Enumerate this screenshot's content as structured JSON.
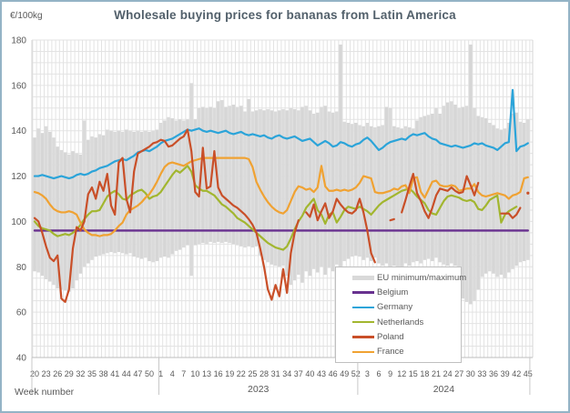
{
  "header": {
    "title": "Wholesale buying prices for bananas from Latin America"
  },
  "axes": {
    "y_unit_label": "€/100kg",
    "x_axis_title": "Week number"
  },
  "chart_data": {
    "type": "line",
    "title": "Wholesale buying prices for bananas from Latin America",
    "ylabel": "€/100kg",
    "xlabel": "Week number",
    "ylim": [
      40,
      180
    ],
    "y_ticks": [
      40,
      60,
      80,
      100,
      120,
      140,
      160,
      180
    ],
    "y_grid_step": 5,
    "grid": true,
    "x_structure": [
      {
        "year": 2022,
        "first_week": 20,
        "last_week": 52,
        "year_label": "",
        "axis_tick_labels": [
          20,
          23,
          26,
          29,
          32,
          35,
          38,
          41,
          44,
          47,
          50
        ]
      },
      {
        "year": 2023,
        "first_week": 1,
        "last_week": 52,
        "year_label": "2023",
        "axis_tick_labels": [
          1,
          4,
          7,
          10,
          13,
          16,
          19,
          22,
          25,
          28,
          31,
          34,
          37,
          40,
          43,
          46,
          49,
          52
        ]
      },
      {
        "year": 2024,
        "first_week": 1,
        "last_week": 45,
        "year_label": "2024",
        "axis_tick_labels": [
          3,
          6,
          9,
          12,
          15,
          18,
          21,
          24,
          27,
          30,
          33,
          36,
          39,
          42,
          45
        ]
      }
    ],
    "band": {
      "name": "EU minimum/maximum",
      "color": "#d9d9d9",
      "max": {
        "y2022": [
          137,
          141,
          139,
          142,
          139.5,
          137,
          133,
          131.5,
          130.5,
          129.5,
          131,
          130,
          129.5,
          144.5,
          136,
          137.5,
          137,
          138.5,
          138,
          140.5,
          140,
          139.5,
          140,
          139.5,
          140.5,
          140,
          139.5,
          140,
          139.5,
          140,
          139.5,
          140,
          140.5
        ],
        "y2023": [
          143.5,
          144.5,
          146,
          145.5,
          144.5,
          145,
          144.5,
          145,
          161,
          145,
          150,
          150.5,
          150,
          150.5,
          150,
          153,
          153.5,
          150.5,
          151,
          151.5,
          150.5,
          151,
          148.5,
          154,
          148.5,
          149,
          149.5,
          149,
          149.5,
          149,
          148.5,
          149,
          149.5,
          149,
          150,
          149.5,
          149,
          150.5,
          151,
          149,
          147.5,
          148,
          150.5,
          151,
          148.5,
          148,
          148.5,
          178,
          144,
          143.5,
          143,
          143.5
        ],
        "y2024": [
          142.5,
          142,
          143.5,
          142,
          141.5,
          142,
          142.5,
          150.5,
          150,
          142,
          141.5,
          141,
          142,
          141.5,
          141,
          144.5,
          146,
          146.5,
          147,
          147.5,
          150,
          147.5,
          151,
          152.5,
          153,
          151.5,
          150,
          150.5,
          151,
          178,
          150,
          146.5,
          146,
          145.5,
          143.5,
          142.5,
          141,
          140.5,
          141,
          143.5,
          147.5,
          148,
          144,
          143.5,
          145
        ]
      },
      "min": {
        "y2022": [
          78,
          77.5,
          76,
          74.5,
          73.5,
          72,
          70.5,
          70,
          69.5,
          69,
          70.5,
          74,
          77,
          80,
          81.5,
          83,
          84.5,
          85,
          85.5,
          86,
          86.5,
          86,
          86.5,
          86,
          85.5,
          86,
          84.5,
          84,
          83.5,
          84,
          82.5,
          82,
          82.5
        ],
        "y2023": [
          84,
          84.5,
          84,
          85.5,
          87,
          87.5,
          88.5,
          89.5,
          76,
          89.5,
          90,
          90.5,
          90,
          91,
          90.5,
          91,
          90.5,
          91,
          90.5,
          90,
          89.5,
          89,
          88.5,
          89,
          88.5,
          89,
          85,
          83,
          82,
          81,
          80.5,
          80,
          80.5,
          76,
          72,
          74,
          76.5,
          73,
          78,
          76,
          79,
          77.5,
          80,
          76.5,
          79.5,
          78,
          81,
          79,
          82.5,
          83.5,
          84.5,
          85
        ],
        "y2024": [
          84.5,
          83,
          84,
          82.5,
          84,
          81.5,
          80.5,
          81.5,
          79.5,
          80.5,
          79,
          80,
          81.5,
          80.5,
          82,
          82.5,
          81.5,
          83,
          83.5,
          82.5,
          84,
          82,
          81,
          80.5,
          81.5,
          80.5,
          79,
          66,
          64.5,
          63.5,
          65,
          70,
          75.5,
          77,
          78,
          77,
          75.5,
          76.5,
          75,
          77.5,
          79,
          80.5,
          82,
          82.5,
          83
        ]
      }
    },
    "series": [
      {
        "name": "Belgium",
        "color": "#68318f",
        "constant": 96
      },
      {
        "name": "Germany",
        "color": "#2ba4d9",
        "y2022": [
          120,
          120,
          120.5,
          120,
          119.5,
          119,
          119.5,
          120,
          119.5,
          119,
          119.5,
          120.5,
          121,
          120.5,
          121,
          122,
          122.5,
          123.5,
          124,
          124.5,
          125.5,
          126.5,
          127,
          127.5,
          127,
          128,
          129,
          130.5,
          131,
          131.5,
          131,
          132,
          133
        ],
        "y2023": [
          134.5,
          135.5,
          136,
          136.5,
          137.5,
          138.5,
          139.5,
          140.5,
          140,
          140.5,
          141,
          140,
          139.5,
          140,
          139.5,
          139,
          139.5,
          140,
          139,
          138.5,
          139,
          139.5,
          138.5,
          138,
          138.5,
          138,
          137.5,
          138,
          137,
          136.5,
          137.5,
          138,
          137,
          136.5,
          137,
          137.5,
          136.5,
          135.5,
          136,
          136.5,
          135,
          133.5,
          134.5,
          135.5,
          134.5,
          133,
          133.5,
          135,
          134.5,
          133.5,
          133,
          134
        ],
        "y2024": [
          134.5,
          136,
          137,
          135.5,
          133.5,
          131.5,
          132.5,
          134,
          135,
          135.5,
          136,
          136.5,
          136,
          137.5,
          138.5,
          138,
          138.5,
          139,
          137.5,
          136.5,
          136,
          134.5,
          134,
          133.5,
          133,
          133.5,
          133,
          132.5,
          133,
          133.5,
          134.5,
          134,
          134.5,
          133.5,
          133,
          132.5,
          131.5,
          133,
          134.5,
          135,
          158,
          131,
          133,
          133.5,
          134.5
        ]
      },
      {
        "name": "Netherlands",
        "color": "#a2b62f",
        "y2022": [
          100,
          98,
          97,
          96.5,
          96,
          94.5,
          93.5,
          94,
          94.5,
          94,
          95,
          96.5,
          98.5,
          101,
          103,
          104.5,
          104.5,
          105,
          108,
          111,
          112.5,
          113.5,
          112,
          110,
          109.5,
          111.5,
          112.5,
          113.5,
          114,
          112.5,
          110,
          111,
          111.5
        ],
        "y2023": [
          113,
          115.5,
          118,
          120.5,
          122.5,
          121.5,
          123,
          124.5,
          122,
          116,
          114.5,
          113.5,
          113.5,
          112.5,
          111.5,
          109.5,
          107.5,
          106.5,
          105,
          103.5,
          101.5,
          100.5,
          99.5,
          98,
          96.5,
          95,
          93.5,
          92,
          90.5,
          89.5,
          88.5,
          88,
          87.5,
          89,
          92.5,
          96.5,
          100,
          102.5,
          106,
          108,
          110,
          105,
          103,
          99,
          103,
          104,
          99.5,
          102,
          105,
          106.5,
          106,
          105.5
        ],
        "y2024": [
          106.5,
          105.5,
          104.5,
          103,
          105,
          107,
          108.5,
          109.5,
          110.5,
          111.5,
          112.5,
          113.5,
          114,
          114.5,
          113,
          111,
          109.5,
          108,
          105,
          103.5,
          103,
          106,
          109,
          111,
          111.5,
          111,
          110.5,
          109.5,
          109,
          109.5,
          108.5,
          105.5,
          105,
          107,
          109.5,
          110.5,
          111.5,
          99.5,
          103,
          104.5,
          105.5,
          106.5,
          null,
          null,
          null
        ]
      },
      {
        "name": "Poland",
        "color": "#c94f28",
        "y2022": [
          101.5,
          100,
          95,
          89,
          84,
          82.5,
          85,
          66,
          64.5,
          70,
          88,
          97.5,
          96,
          100,
          112,
          115,
          110,
          117.5,
          113.5,
          121,
          107,
          103,
          126,
          128,
          110,
          104,
          122,
          130,
          131,
          132,
          133,
          134.5,
          135
        ],
        "y2023": [
          136,
          135.5,
          133,
          133.5,
          135,
          136.5,
          137.5,
          140.5,
          131,
          113,
          111,
          132.5,
          114.5,
          115.5,
          131,
          115,
          111.5,
          110,
          108.5,
          107,
          106,
          104.5,
          103,
          101,
          98.5,
          95,
          88,
          80,
          70,
          65.5,
          72,
          67,
          79,
          68.5,
          86,
          95,
          100.5,
          null,
          104,
          102,
          107.5,
          100.5,
          104.5,
          108,
          101.5,
          104.5,
          110,
          107.5,
          105.5,
          104,
          103.5,
          105
        ],
        "y2024": [
          110,
          104,
          96,
          86,
          82,
          null,
          null,
          null,
          100.5,
          101,
          null,
          104,
          109.5,
          115.5,
          121,
          112.5,
          109,
          104.5,
          101.5,
          106,
          111.5,
          114.5,
          114,
          113.5,
          115,
          113.5,
          112.5,
          113,
          120,
          116,
          111.5,
          117,
          null,
          null,
          null,
          null,
          null,
          103.5,
          103.5,
          103.5,
          101.5,
          103,
          106,
          null,
          112.5
        ]
      },
      {
        "name": "France",
        "color": "#f0a232",
        "y2022": [
          113,
          112.5,
          111.5,
          110,
          107.5,
          105.5,
          104.5,
          104,
          104,
          104.5,
          104,
          103,
          99.5,
          96.5,
          95,
          94,
          94,
          93.5,
          94,
          94,
          94.5,
          96,
          98,
          99.5,
          103,
          105,
          106,
          107,
          108.5,
          110.5,
          112,
          114.5,
          117.5
        ],
        "y2023": [
          121,
          124,
          125.5,
          126,
          125.5,
          125,
          124.5,
          125.5,
          126.5,
          127,
          127.5,
          128,
          128,
          128,
          128,
          128,
          128,
          128,
          128,
          128,
          128,
          128,
          128,
          127.5,
          124,
          117.5,
          114,
          111,
          108.5,
          106.5,
          105,
          104,
          103.5,
          105,
          109,
          113,
          115.5,
          115,
          114,
          114.5,
          113,
          115,
          124.5,
          115.5,
          113.5,
          113.5,
          114,
          113.5,
          114,
          113.5,
          114,
          115
        ],
        "y2024": [
          117,
          120,
          119.5,
          119,
          113,
          112.5,
          112.5,
          113,
          113.5,
          114.5,
          114,
          115.5,
          116,
          112.5,
          119,
          119.5,
          113,
          110.5,
          114,
          117.5,
          118,
          116,
          115.5,
          115.5,
          116,
          115.5,
          113.5,
          114,
          114.5,
          114.5,
          116.5,
          113,
          111.5,
          111,
          111.5,
          112,
          112.5,
          112,
          111.5,
          110,
          111.5,
          112,
          113,
          119,
          119.5
        ]
      }
    ],
    "legend": {
      "position": "inside-bottom-center",
      "entries": [
        {
          "label": "EU minimum/maximum",
          "color": "#d9d9d9",
          "swatch": "band"
        },
        {
          "label": "Belgium",
          "color": "#68318f",
          "swatch": "line"
        },
        {
          "label": "Germany",
          "color": "#2ba4d9",
          "swatch": "line"
        },
        {
          "label": "Netherlands",
          "color": "#a2b62f",
          "swatch": "line"
        },
        {
          "label": "Poland",
          "color": "#c94f28",
          "swatch": "line"
        },
        {
          "label": "France",
          "color": "#f0a232",
          "swatch": "line"
        }
      ]
    },
    "colors": {
      "grid": "#e3e3e3",
      "axis_text": "#595959",
      "title_text": "#52606b",
      "frame_border": "#94b3c6"
    }
  }
}
